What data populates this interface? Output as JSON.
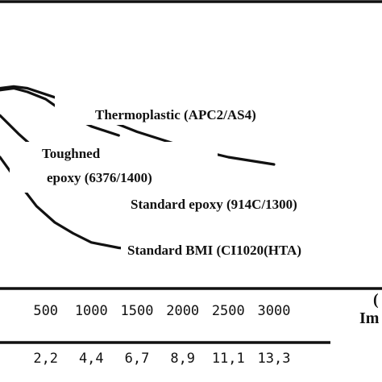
{
  "chart_data": {
    "type": "line",
    "title": "",
    "xlabel": "Im",
    "xlabel_lead": "(",
    "ylabel": "",
    "x_ticks": [
      {
        "value": 500,
        "label": "500"
      },
      {
        "value": 1000,
        "label": "1000"
      },
      {
        "value": 1500,
        "label": "1500"
      },
      {
        "value": 2000,
        "label": "2000"
      },
      {
        "value": 2500,
        "label": "2500"
      },
      {
        "value": 3000,
        "label": "3000"
      }
    ],
    "secondary_x_ticks": [
      {
        "value": 500,
        "label": "2,2"
      },
      {
        "value": 1000,
        "label": "4,4"
      },
      {
        "value": 1500,
        "label": "6,7"
      },
      {
        "value": 2000,
        "label": "8,9"
      },
      {
        "value": 2500,
        "label": "11,1"
      },
      {
        "value": 3000,
        "label": "13,3"
      }
    ],
    "xlim": [
      0,
      3600
    ],
    "ylim": [
      0,
      100
    ],
    "grid": false,
    "legend": "none",
    "series": [
      {
        "name": "Thermoplastic (APC2/AS4)",
        "label_lines": [
          "Thermoplastic (APC2/AS4)"
        ],
        "x": [
          0,
          150,
          300,
          600,
          1000,
          1500,
          2000,
          2500,
          3000
        ],
        "y": [
          98,
          99,
          98,
          93,
          84,
          74,
          66,
          60,
          56
        ]
      },
      {
        "name": "Toughned epoxy (6376/1400)",
        "label_lines": [
          "Toughned",
          "epoxy (6376/1400)"
        ],
        "x": [
          0,
          150,
          300,
          500,
          700,
          1000,
          1300
        ],
        "y": [
          97,
          98,
          96,
          92,
          85,
          77,
          72
        ]
      },
      {
        "name": "Standard epoxy (914C/1300)",
        "label_lines": [
          "Standard epoxy (914C/1300)"
        ],
        "x": [
          0,
          200,
          400,
          600,
          800,
          1000,
          1300,
          1500
        ],
        "y": [
          83,
          73,
          64,
          56,
          50,
          46,
          43,
          42
        ]
      },
      {
        "name": "Standard BMI (CI1020(HTA)",
        "label_lines": [
          "Standard BMI (CI1020(HTA)"
        ],
        "x": [
          0,
          200,
          400,
          600,
          800,
          1000,
          1300,
          1500
        ],
        "y": [
          60,
          46,
          33,
          24,
          18,
          13,
          10,
          9
        ]
      }
    ]
  }
}
